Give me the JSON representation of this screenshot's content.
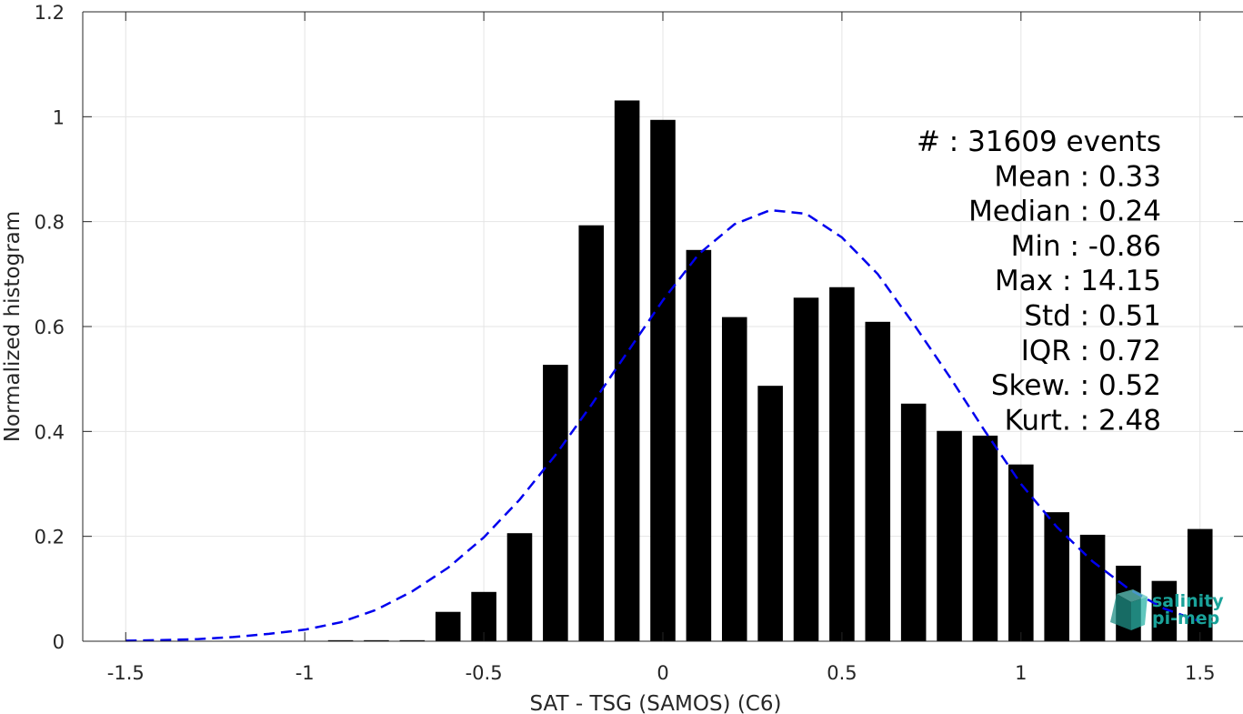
{
  "chart_data": {
    "type": "bar",
    "xlabel": "SAT - TSG (SAMOS) (C6)",
    "ylabel": "Normalized histogram",
    "xlim": [
      -1.62,
      1.62
    ],
    "ylim": [
      0,
      1.2
    ],
    "grid": true,
    "xticks": [
      -1.5,
      -1,
      -0.5,
      0,
      0.5,
      1,
      1.5
    ],
    "xtick_labels": [
      "-1.5",
      "-1",
      "-0.5",
      "0",
      "0.5",
      "1",
      "1.5"
    ],
    "yticks": [
      0,
      0.2,
      0.4,
      0.6,
      0.8,
      1,
      1.2
    ],
    "ytick_labels": [
      "0",
      "0.2",
      "0.4",
      "0.6",
      "0.8",
      "1",
      "1.2"
    ],
    "bar_width": 0.07,
    "bins": [
      -0.9,
      -0.8,
      -0.7,
      -0.6,
      -0.5,
      -0.4,
      -0.3,
      -0.2,
      -0.1,
      0.0,
      0.1,
      0.2,
      0.3,
      0.4,
      0.5,
      0.6,
      0.7,
      0.8,
      0.9,
      1.0,
      1.1,
      1.2,
      1.3,
      1.4,
      1.5
    ],
    "values": [
      0.002,
      0.002,
      0.002,
      0.056,
      0.094,
      0.206,
      0.527,
      0.793,
      1.031,
      0.994,
      0.746,
      0.618,
      0.487,
      0.655,
      0.675,
      0.609,
      0.453,
      0.401,
      0.392,
      0.337,
      0.246,
      0.203,
      0.144,
      0.115,
      0.214
    ],
    "bar_color": "#000000",
    "fit_curve": {
      "style": "dashed",
      "color": "#0000ee",
      "x": [
        -1.5,
        -1.4,
        -1.3,
        -1.2,
        -1.1,
        -1.0,
        -0.9,
        -0.8,
        -0.7,
        -0.6,
        -0.5,
        -0.4,
        -0.3,
        -0.2,
        -0.1,
        0.0,
        0.1,
        0.2,
        0.3,
        0.4,
        0.5,
        0.6,
        0.7,
        0.8,
        0.9,
        1.0,
        1.1,
        1.2,
        1.3,
        1.4,
        1.5
      ],
      "y": [
        0.001,
        0.002,
        0.004,
        0.008,
        0.014,
        0.022,
        0.036,
        0.06,
        0.095,
        0.14,
        0.198,
        0.27,
        0.355,
        0.45,
        0.55,
        0.65,
        0.738,
        0.795,
        0.822,
        0.815,
        0.77,
        0.7,
        0.605,
        0.505,
        0.4,
        0.3,
        0.218,
        0.152,
        0.1,
        0.062,
        0.038
      ]
    },
    "stats": [
      "#  : 31609 events",
      "Mean : 0.33",
      "Median : 0.24",
      "Min : -0.86",
      "Max : 14.15",
      "Std : 0.51",
      "IQR : 0.72",
      "Skew. : 0.52",
      "Kurt. : 2.48"
    ]
  },
  "logo": {
    "line1": "salinity",
    "line2": "pi-mep",
    "color": "#1aa39a"
  }
}
